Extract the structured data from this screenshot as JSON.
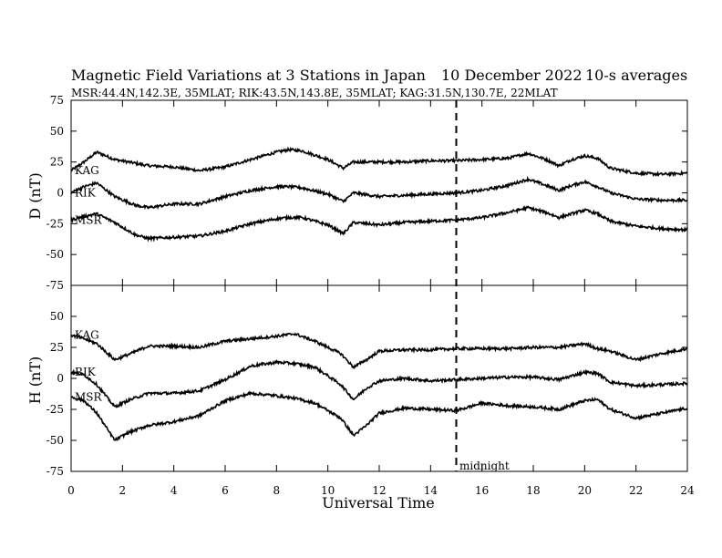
{
  "chart_data": {
    "type": "line",
    "title": "Magnetic Field Variations at 3 Stations in Japan",
    "date": "10 December 2022",
    "averaging": "10-s averages",
    "subtitle": "MSR:44.4N,142.3E, 35MLAT;  RIK:43.5N,143.8E, 35MLAT;  KAG:31.5N,130.7E, 22MLAT",
    "xlabel": "Universal Time",
    "xlim": [
      0,
      24
    ],
    "xticks": [
      "0",
      "2",
      "4",
      "6",
      "8",
      "10",
      "12",
      "14",
      "16",
      "18",
      "20",
      "22",
      "24"
    ],
    "yticks": [
      "75",
      "50",
      "25",
      "0",
      "-25",
      "-50",
      "-75"
    ],
    "marker": {
      "x": 15,
      "label": "midnight"
    },
    "panels": [
      {
        "ylabel": "D (nT)",
        "ylim": [
          -75,
          75
        ],
        "series": [
          {
            "name": "KAG",
            "x": [
              0,
              0.5,
              1,
              1.7,
              2.5,
              3,
              4,
              5,
              6,
              7,
              8,
              8.5,
              9,
              10,
              10.6,
              11,
              12,
              13,
              14,
              15,
              16,
              17,
              17.8,
              18.5,
              19,
              19.5,
              20,
              20.5,
              21,
              22,
              23,
              24
            ],
            "values": [
              18,
              25,
              33,
              27,
              24,
              22,
              21,
              18,
              21,
              27,
              33,
              35,
              34,
              27,
              20,
              25,
              25,
              25,
              26,
              26,
              27,
              28,
              32,
              27,
              22,
              27,
              30,
              28,
              20,
              16,
              15,
              16
            ]
          },
          {
            "name": "RIK",
            "x": [
              0,
              0.5,
              1,
              1.7,
              2.5,
              3,
              4,
              5,
              6,
              7,
              8,
              8.5,
              9,
              10,
              10.6,
              11,
              12,
              13,
              14,
              15,
              16,
              17,
              17.8,
              18.5,
              19,
              19.5,
              20,
              20.5,
              21,
              22,
              23,
              24
            ],
            "values": [
              0,
              5,
              8,
              -3,
              -10,
              -12,
              -9,
              -9,
              -3,
              2,
              5,
              5,
              4,
              -1,
              -7,
              0,
              -3,
              -2,
              -1,
              0,
              2,
              6,
              11,
              6,
              2,
              6,
              9,
              5,
              0,
              -5,
              -6,
              -6
            ]
          },
          {
            "name": "MSR",
            "x": [
              0,
              0.5,
              1,
              1.7,
              2.5,
              3,
              4,
              5,
              6,
              7,
              8,
              8.5,
              9,
              10,
              10.6,
              11,
              12,
              13,
              14,
              15,
              16,
              17,
              17.8,
              18.5,
              19,
              19.5,
              20,
              20.5,
              21,
              22,
              23,
              24
            ],
            "values": [
              -22,
              -19,
              -17,
              -24,
              -34,
              -37,
              -36,
              -35,
              -31,
              -25,
              -21,
              -20,
              -20,
              -26,
              -33,
              -24,
              -26,
              -24,
              -23,
              -22,
              -20,
              -16,
              -12,
              -16,
              -20,
              -17,
              -14,
              -17,
              -23,
              -27,
              -29,
              -30
            ]
          }
        ]
      },
      {
        "ylabel": "H (nT)",
        "ylim": [
          -75,
          75
        ],
        "series": [
          {
            "name": "KAG",
            "x": [
              0,
              0.5,
              1,
              1.7,
              2.2,
              3,
              4,
              5,
              6,
              7,
              8,
              8.7,
              9.5,
              10.5,
              11,
              11.5,
              12,
              13,
              14,
              15,
              16,
              17,
              18,
              19,
              20,
              20.5,
              21,
              22,
              23,
              24
            ],
            "values": [
              35,
              32,
              28,
              15,
              19,
              26,
              26,
              25,
              30,
              32,
              34,
              36,
              30,
              20,
              9,
              15,
              22,
              23,
              23,
              24,
              24,
              24,
              25,
              25,
              28,
              24,
              22,
              15,
              20,
              24
            ]
          },
          {
            "name": "RIK",
            "x": [
              0,
              0.5,
              1,
              1.7,
              2.2,
              3,
              4,
              5,
              6,
              7,
              8,
              8.7,
              9.5,
              10.5,
              11,
              11.5,
              12,
              13,
              14,
              15,
              16,
              17,
              18,
              19,
              20,
              20.5,
              21,
              22,
              23,
              24
            ],
            "values": [
              5,
              3,
              -5,
              -23,
              -18,
              -12,
              -12,
              -10,
              -1,
              10,
              13,
              12,
              9,
              -5,
              -17,
              -8,
              -2,
              0,
              -2,
              -1,
              0,
              1,
              1,
              -1,
              5,
              4,
              -3,
              -6,
              -5,
              -4
            ]
          },
          {
            "name": "MSR",
            "x": [
              0,
              0.5,
              1,
              1.7,
              2.2,
              3,
              4,
              5,
              6,
              7,
              8,
              8.7,
              9.5,
              10.5,
              11,
              11.5,
              12,
              13,
              14,
              15,
              16,
              17,
              18,
              19,
              20,
              20.5,
              21,
              22,
              23,
              24
            ],
            "values": [
              -15,
              -18,
              -28,
              -50,
              -44,
              -38,
              -35,
              -30,
              -18,
              -12,
              -14,
              -16,
              -20,
              -32,
              -46,
              -38,
              -28,
              -24,
              -25,
              -26,
              -20,
              -22,
              -23,
              -25,
              -18,
              -17,
              -25,
              -32,
              -28,
              -24
            ]
          }
        ]
      }
    ]
  }
}
